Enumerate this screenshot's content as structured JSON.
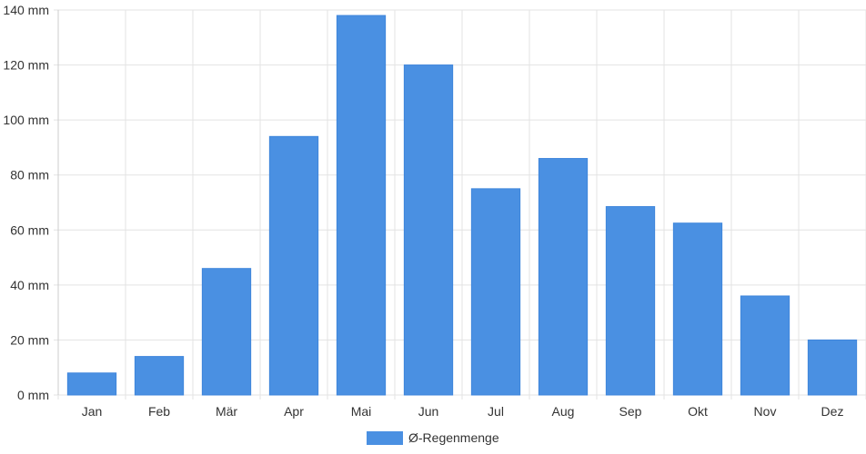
{
  "chart_data": {
    "type": "bar",
    "categories": [
      "Jan",
      "Feb",
      "Mär",
      "Apr",
      "Mai",
      "Jun",
      "Jul",
      "Aug",
      "Sep",
      "Okt",
      "Nov",
      "Dez"
    ],
    "series": [
      {
        "name": "Ø-Regenmenge",
        "values": [
          8,
          14,
          46,
          94,
          138,
          120,
          75,
          86,
          68.5,
          62.5,
          36,
          20
        ],
        "color": "#4a90e2"
      }
    ],
    "yunit": "mm",
    "ylim": [
      0,
      140
    ],
    "yticks": [
      0,
      20,
      40,
      60,
      80,
      100,
      120,
      140
    ],
    "grid": true,
    "legend_position": "bottom-center"
  }
}
